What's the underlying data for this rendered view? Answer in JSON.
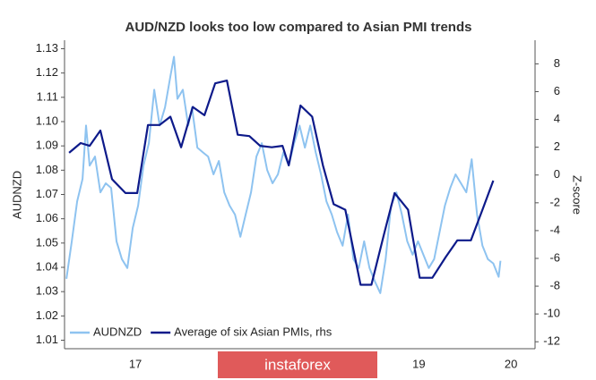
{
  "chart_data": {
    "type": "line",
    "title": "AUD/NZD looks too low compared to Asian PMI trends",
    "ylabel": "AUDNZD",
    "y2label": "Z-score",
    "watermark": "instaforex",
    "xlim": [
      2017,
      2020.32
    ],
    "xticks": [
      {
        "value": 2017.5,
        "label": "17"
      },
      {
        "value": 2019.5,
        "label": "19"
      },
      {
        "value": 2020.15,
        "label": "20"
      }
    ],
    "ylim": [
      1.0065,
      1.1335
    ],
    "yticks": [
      1.01,
      1.02,
      1.03,
      1.04,
      1.05,
      1.06,
      1.07,
      1.08,
      1.09,
      {
        "value": 1.1,
        "label": "1.10"
      },
      1.11,
      1.12,
      1.13
    ],
    "y2lim": [
      -12.5,
      9.7
    ],
    "y2ticks": [
      -12,
      -10,
      -8,
      -6,
      -4,
      -2,
      0,
      2,
      4,
      6,
      8
    ],
    "legend": "lower left",
    "series": [
      {
        "name": "AUDNZD",
        "color": "#8ec3f0",
        "x": [
          2017.013,
          2017.051,
          2017.089,
          2017.127,
          2017.152,
          2017.177,
          2017.215,
          2017.253,
          2017.291,
          2017.329,
          2017.367,
          2017.405,
          2017.443,
          2017.481,
          2017.519,
          2017.557,
          2017.595,
          2017.633,
          2017.671,
          2017.709,
          2017.747,
          2017.772,
          2017.797,
          2017.835,
          2017.873,
          2017.899,
          2017.937,
          2017.975,
          2018.013,
          2018.051,
          2018.089,
          2018.127,
          2018.165,
          2018.203,
          2018.241,
          2018.278,
          2018.316,
          2018.354,
          2018.392,
          2018.43,
          2018.468,
          2018.506,
          2018.544,
          2018.582,
          2018.62,
          2018.658,
          2018.696,
          2018.734,
          2018.772,
          2018.81,
          2018.848,
          2018.886,
          2018.924,
          2018.962,
          2019.0,
          2019.038,
          2019.076,
          2019.114,
          2019.152,
          2019.19,
          2019.228,
          2019.266,
          2019.304,
          2019.342,
          2019.38,
          2019.418,
          2019.456,
          2019.494,
          2019.532,
          2019.57,
          2019.608,
          2019.646,
          2019.684,
          2019.722,
          2019.759,
          2019.797,
          2019.835,
          2019.873,
          2019.911,
          2019.949,
          2019.987,
          2020.025,
          2020.063,
          2020.076
        ],
        "values": [
          1.0353,
          1.0507,
          1.0672,
          1.0764,
          1.0984,
          1.0819,
          1.0856,
          1.0709,
          1.0746,
          1.0727,
          1.0507,
          1.0434,
          1.0397,
          1.0562,
          1.0654,
          1.0819,
          1.0911,
          1.1131,
          1.0984,
          1.1058,
          1.1186,
          1.1267,
          1.1094,
          1.1131,
          1.0984,
          1.1058,
          1.0893,
          1.0874,
          1.0856,
          1.0783,
          1.0838,
          1.0709,
          1.0654,
          1.0617,
          1.0526,
          1.0617,
          1.0709,
          1.0856,
          1.0911,
          1.0801,
          1.0746,
          1.0783,
          1.0874,
          1.0819,
          1.0911,
          1.0984,
          1.0893,
          1.0984,
          1.0874,
          1.0783,
          1.0672,
          1.0617,
          1.0544,
          1.0489,
          1.0617,
          1.0434,
          1.0397,
          1.0507,
          1.0397,
          1.0342,
          1.0294,
          1.0434,
          1.0654,
          1.0709,
          1.0617,
          1.0507,
          1.0452,
          1.0507,
          1.0452,
          1.0397,
          1.0434,
          1.0544,
          1.0654,
          1.0727,
          1.0783,
          1.0746,
          1.0709,
          1.0845,
          1.0617,
          1.0489,
          1.0434,
          1.0416,
          1.0361,
          1.0427
        ]
      },
      {
        "name": "Average of six Asian PMIs, rhs",
        "color": "#0d1a8a",
        "axis": "y2",
        "x": [
          2017.032,
          2017.114,
          2017.177,
          2017.253,
          2017.335,
          2017.43,
          2017.513,
          2017.589,
          2017.671,
          2017.747,
          2017.823,
          2017.905,
          2017.987,
          2018.063,
          2018.146,
          2018.222,
          2018.304,
          2018.38,
          2018.462,
          2018.538,
          2018.582,
          2018.665,
          2018.747,
          2018.823,
          2018.899,
          2018.981,
          2019.089,
          2019.165,
          2019.253,
          2019.329,
          2019.424,
          2019.506,
          2019.595,
          2019.69,
          2019.772,
          2019.867,
          2019.949,
          2020.025
        ],
        "values": [
          1.6,
          2.3,
          2.1,
          3.2,
          -0.3,
          -1.3,
          -1.3,
          3.6,
          3.6,
          4.2,
          2.0,
          4.9,
          4.3,
          6.6,
          6.8,
          2.9,
          2.8,
          2.1,
          2.0,
          2.1,
          0.7,
          5.0,
          4.2,
          0.7,
          -2.1,
          -2.5,
          -7.9,
          -7.9,
          -4.3,
          -1.3,
          -2.5,
          -7.4,
          -7.4,
          -5.9,
          -4.7,
          -4.7,
          -2.5,
          -0.4
        ]
      }
    ]
  }
}
